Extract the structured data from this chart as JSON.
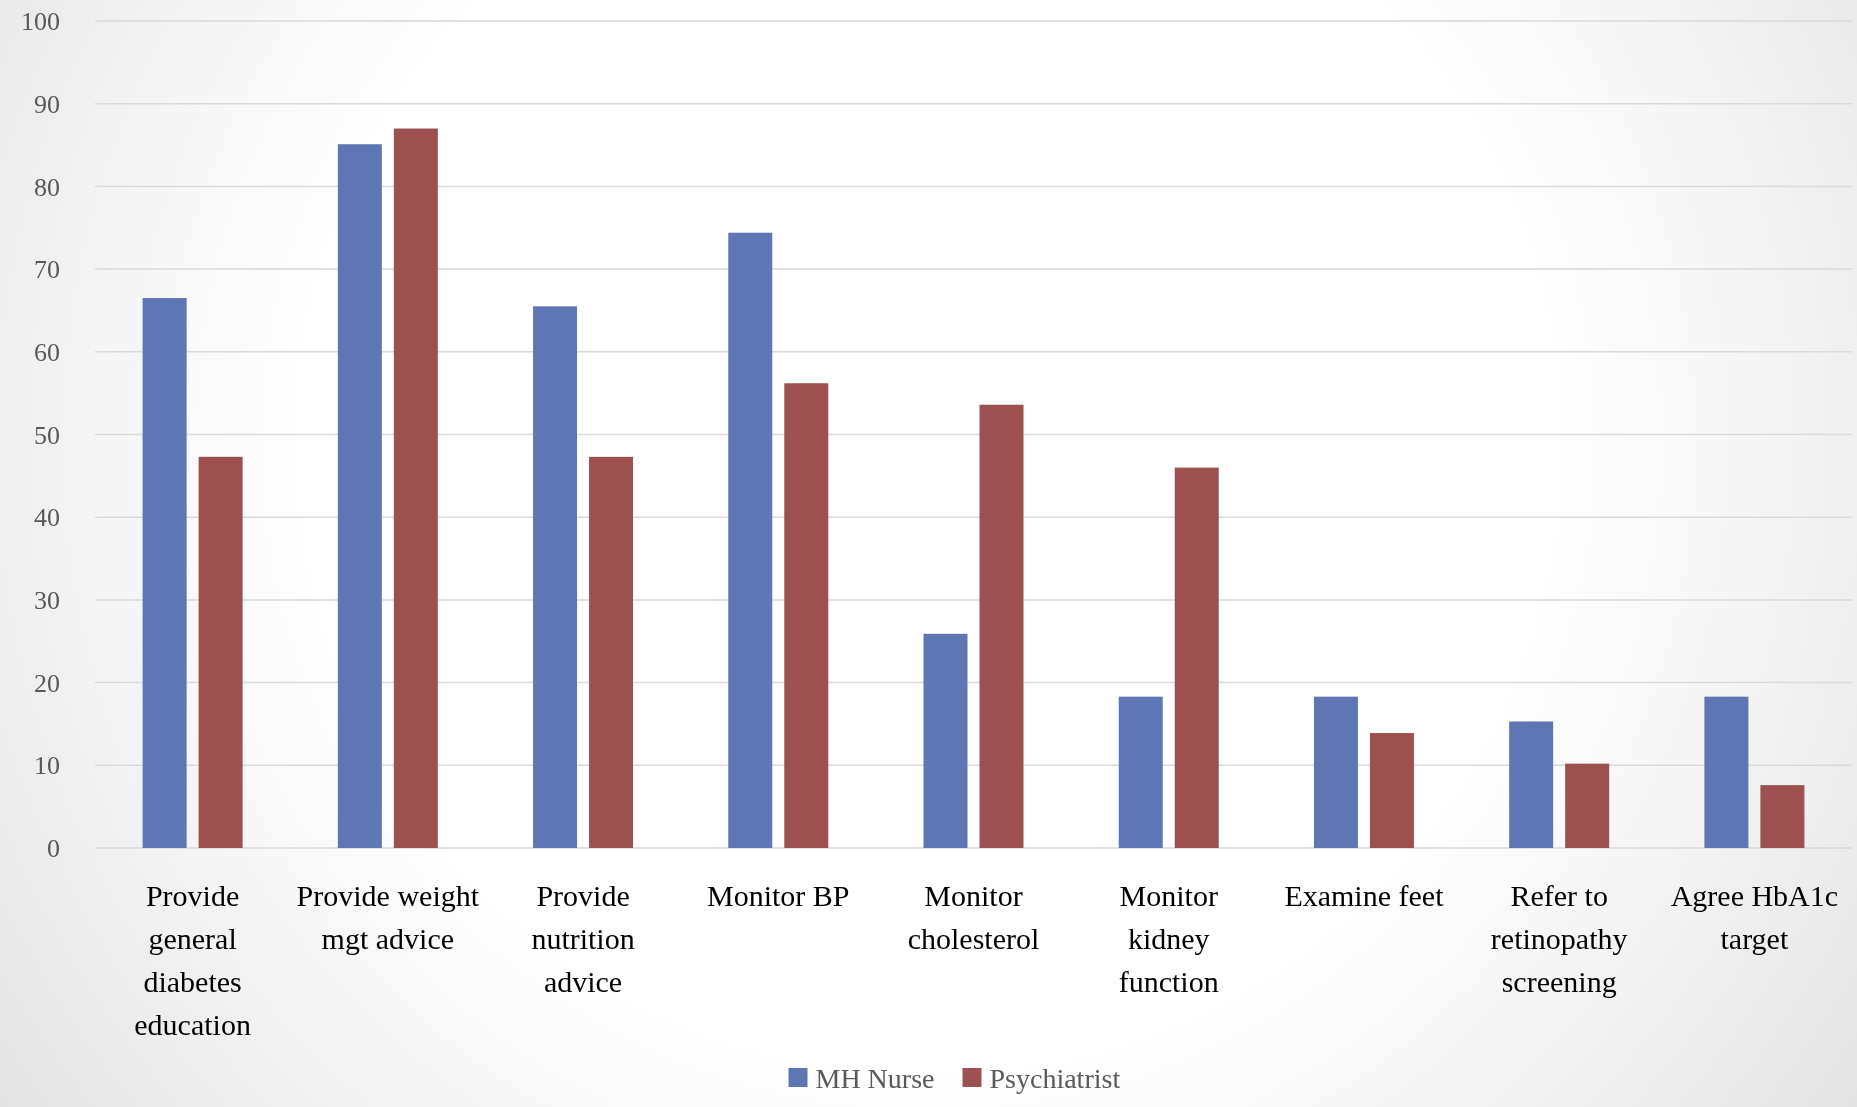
{
  "chart_data": {
    "type": "bar",
    "categories": [
      "Provide general diabetes education",
      "Provide weight mgt advice",
      "Provide nutrition advice",
      "Monitor BP",
      "Monitor cholesterol",
      "Monitor kidney function",
      "Examine feet",
      "Refer to retinopathy screening",
      "Agree HbA1c target"
    ],
    "series": [
      {
        "name": "MH Nurse",
        "color": "#5f76b4",
        "values": [
          66.5,
          85.1,
          65.5,
          74.4,
          25.9,
          18.3,
          18.3,
          15.3,
          18.3
        ]
      },
      {
        "name": "Psychiatrist",
        "color": "#9c5050",
        "values": [
          47.3,
          87.0,
          47.3,
          56.2,
          53.6,
          46.0,
          13.9,
          10.2,
          7.6
        ]
      }
    ],
    "ylim": [
      0,
      100
    ],
    "yticks": [
      0,
      10,
      20,
      30,
      40,
      50,
      60,
      70,
      80,
      90,
      100
    ],
    "grid": "y",
    "legend": "bottom"
  }
}
